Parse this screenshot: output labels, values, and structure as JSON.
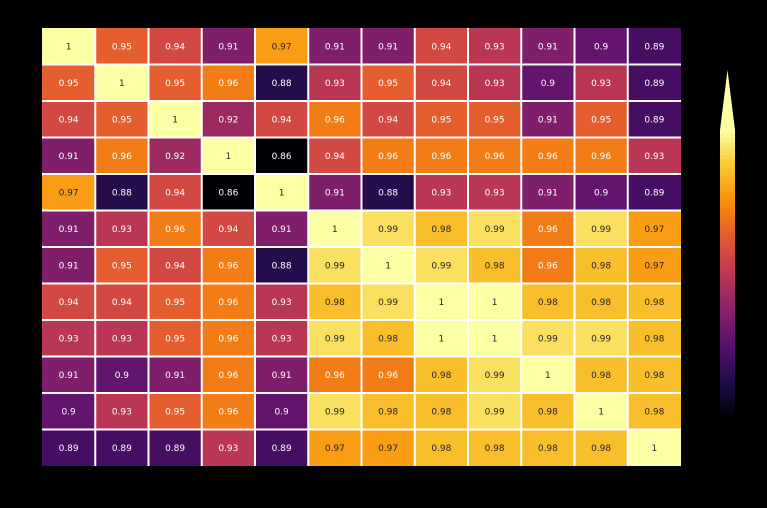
{
  "chart_data": {
    "type": "heatmap",
    "title": "",
    "xlabel": "",
    "ylabel": "",
    "colormap": "inferno",
    "value_range": [
      0.86,
      1.0
    ],
    "grid_lines_color": "#ffffff",
    "colorbar": {
      "visible": true,
      "placement": "right",
      "extend": "max"
    },
    "matrix": [
      [
        1,
        0.95,
        0.94,
        0.91,
        0.97,
        0.91,
        0.91,
        0.94,
        0.93,
        0.91,
        0.9,
        0.89
      ],
      [
        0.95,
        1,
        0.95,
        0.96,
        0.88,
        0.93,
        0.95,
        0.94,
        0.93,
        0.9,
        0.93,
        0.89
      ],
      [
        0.94,
        0.95,
        1,
        0.92,
        0.94,
        0.96,
        0.94,
        0.95,
        0.95,
        0.91,
        0.95,
        0.89
      ],
      [
        0.91,
        0.96,
        0.92,
        1,
        0.86,
        0.94,
        0.96,
        0.96,
        0.96,
        0.96,
        0.96,
        0.93
      ],
      [
        0.97,
        0.88,
        0.94,
        0.86,
        1,
        0.91,
        0.88,
        0.93,
        0.93,
        0.91,
        0.9,
        0.89
      ],
      [
        0.91,
        0.93,
        0.96,
        0.94,
        0.91,
        1,
        0.99,
        0.98,
        0.99,
        0.96,
        0.99,
        0.97
      ],
      [
        0.91,
        0.95,
        0.94,
        0.96,
        0.88,
        0.99,
        1,
        0.99,
        0.98,
        0.96,
        0.98,
        0.97
      ],
      [
        0.94,
        0.94,
        0.95,
        0.96,
        0.93,
        0.98,
        0.99,
        1,
        1,
        0.98,
        0.98,
        0.98
      ],
      [
        0.93,
        0.93,
        0.95,
        0.96,
        0.93,
        0.99,
        0.98,
        1,
        1,
        0.99,
        0.99,
        0.98
      ],
      [
        0.91,
        0.9,
        0.91,
        0.96,
        0.91,
        0.96,
        0.96,
        0.98,
        0.99,
        1,
        0.98,
        0.98
      ],
      [
        0.9,
        0.93,
        0.95,
        0.96,
        0.9,
        0.99,
        0.98,
        0.98,
        0.99,
        0.98,
        1,
        0.98
      ],
      [
        0.89,
        0.89,
        0.89,
        0.93,
        0.89,
        0.97,
        0.97,
        0.98,
        0.98,
        0.98,
        0.98,
        1
      ]
    ]
  }
}
